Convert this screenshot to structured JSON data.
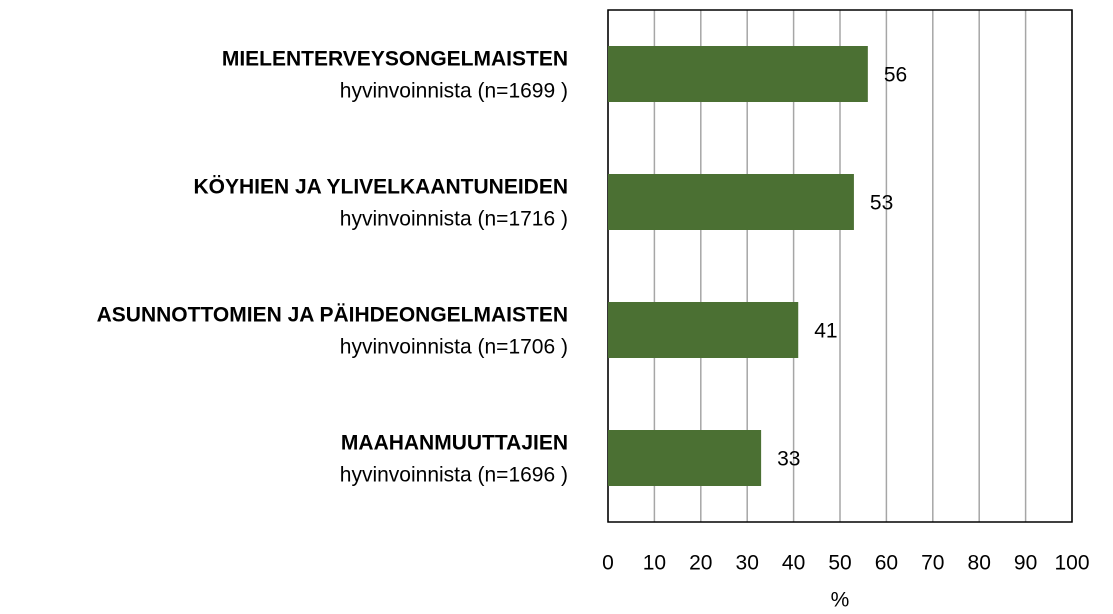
{
  "chart_data": {
    "type": "bar",
    "orientation": "horizontal",
    "categories": [
      [
        "MIELENTERVEYSONGELMAISTEN",
        "hyvinvoinnista (n=1699 )"
      ],
      [
        "KÖYHIEN JA YLIVELKAANTUNEIDEN",
        "hyvinvoinnista (n=1716 )"
      ],
      [
        "ASUNNOTTOMIEN JA PÄIHDEONGELMAISTEN",
        "hyvinvoinnista (n=1706 )"
      ],
      [
        "MAAHANMUUTTAJIEN",
        "hyvinvoinnista (n=1696 )"
      ]
    ],
    "values": [
      56,
      53,
      41,
      33
    ],
    "color": "#4b7033",
    "xlabel": "%",
    "xlim": [
      0,
      100
    ],
    "xticks": [
      0,
      10,
      20,
      30,
      40,
      50,
      60,
      70,
      80,
      90,
      100
    ],
    "grid": true
  }
}
